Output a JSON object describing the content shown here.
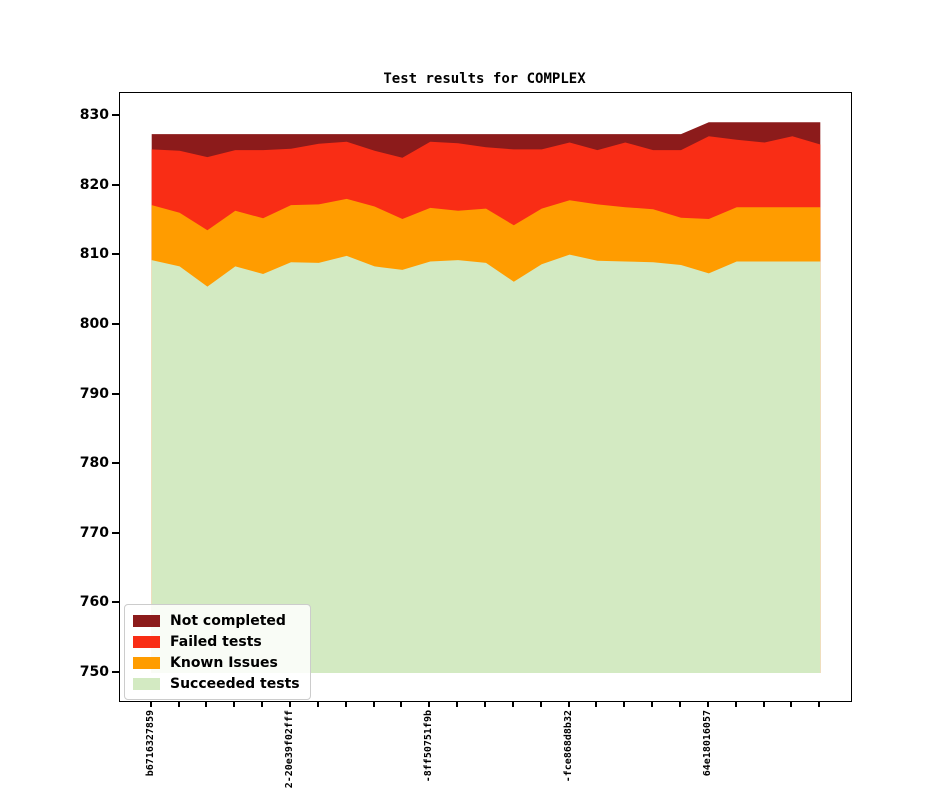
{
  "title": "Test results for COMPLEX",
  "y_axis": {
    "tick_labels": [
      "830",
      "820",
      "810",
      "800",
      "790",
      "780",
      "770",
      "760",
      "750"
    ],
    "tick_values": [
      830,
      820,
      810,
      800,
      790,
      780,
      770,
      760,
      750
    ]
  },
  "x_axis": {
    "n_ticks": 25,
    "labels": [
      {
        "index": 0,
        "text": "b6716327859"
      },
      {
        "index": 5,
        "text": "2-20e39f02fff"
      },
      {
        "index": 10,
        "text": "-8ff50751f9b"
      },
      {
        "index": 15,
        "text": "-fce868d8b32"
      },
      {
        "index": 20,
        "text": "64e18016057"
      }
    ]
  },
  "legend": {
    "entries": [
      {
        "label": "Not completed",
        "color": "#8c1b1b"
      },
      {
        "label": "Failed tests",
        "color": "#f92d15"
      },
      {
        "label": "Known Issues",
        "color": "#ff9c00"
      },
      {
        "label": "Succeeded tests",
        "color": "#d3eac2"
      }
    ]
  },
  "chart_data": {
    "type": "area",
    "stacked": true,
    "title": "Test results for COMPLEX",
    "xlabel": "",
    "ylabel": "",
    "n_points": 25,
    "baseline": 750,
    "ylim": [
      746,
      833.3
    ],
    "yticks": [
      750,
      760,
      770,
      780,
      790,
      800,
      810,
      820,
      830
    ],
    "grid": false,
    "legend_position": "lower left",
    "xtick_labels_at": {
      "0": "b6716327859",
      "5": "2-20e39f02fff",
      "10": "-8ff50751f9b",
      "15": "-fce868d8b32",
      "20": "64e18016057"
    },
    "series": [
      {
        "name": "Succeeded tests",
        "color": "#d3eac2",
        "values": [
          809,
          808,
          806,
          808,
          807,
          809,
          809,
          810,
          808,
          808,
          809,
          809,
          809,
          806,
          809,
          810,
          809,
          809,
          809,
          809,
          807,
          809,
          809,
          809,
          809
        ],
        "cumulative_top": [
          809.3,
          808.4,
          805.5,
          808.4,
          807.3,
          809.0,
          808.9,
          809.9,
          808.4,
          807.9,
          809.1,
          809.3,
          808.9,
          806.2,
          808.7,
          810.1,
          809.2,
          809.1,
          809.0,
          808.6,
          807.4,
          809.1,
          809.1,
          809.1,
          809.1
        ]
      },
      {
        "name": "Known Issues",
        "color": "#ff9c00",
        "values": [
          8,
          8,
          8,
          8,
          8,
          8,
          8,
          8,
          9,
          7,
          8,
          7,
          8,
          8,
          8,
          8,
          8,
          8,
          8,
          7,
          8,
          8,
          8,
          8,
          8
        ],
        "cumulative_top": [
          817.2,
          816.1,
          813.6,
          816.4,
          815.3,
          817.2,
          817.3,
          818.1,
          817.0,
          815.2,
          816.8,
          816.4,
          816.7,
          814.3,
          816.7,
          817.9,
          817.3,
          816.9,
          816.6,
          815.4,
          815.2,
          816.9,
          816.9,
          816.9,
          816.9
        ]
      },
      {
        "name": "Failed tests",
        "color": "#f92d15",
        "values": [
          8,
          9,
          10,
          9,
          10,
          8,
          9,
          8,
          8,
          9,
          9,
          10,
          9,
          11,
          8,
          8,
          8,
          9,
          9,
          10,
          12,
          10,
          9,
          10,
          9
        ],
        "cumulative_top": [
          825.2,
          825.0,
          824.1,
          825.1,
          825.1,
          825.3,
          826.0,
          826.3,
          825.0,
          824.0,
          826.3,
          826.1,
          825.5,
          825.2,
          825.2,
          826.2,
          825.1,
          826.2,
          825.1,
          825.1,
          827.1,
          826.6,
          826.2,
          827.1,
          825.9
        ]
      },
      {
        "name": "Not completed",
        "color": "#8c1b1b",
        "values": [
          2,
          2,
          3,
          2,
          2,
          2,
          1,
          1,
          2,
          3,
          1,
          1,
          2,
          2,
          2,
          1,
          2,
          1,
          2,
          2,
          2,
          3,
          3,
          2,
          3
        ],
        "cumulative_top": [
          827.4,
          827.4,
          827.4,
          827.4,
          827.4,
          827.4,
          827.4,
          827.4,
          827.4,
          827.4,
          827.4,
          827.4,
          827.4,
          827.4,
          827.4,
          827.4,
          827.4,
          827.4,
          827.4,
          827.4,
          829.1,
          829.1,
          829.1,
          829.1,
          829.1
        ]
      }
    ]
  }
}
